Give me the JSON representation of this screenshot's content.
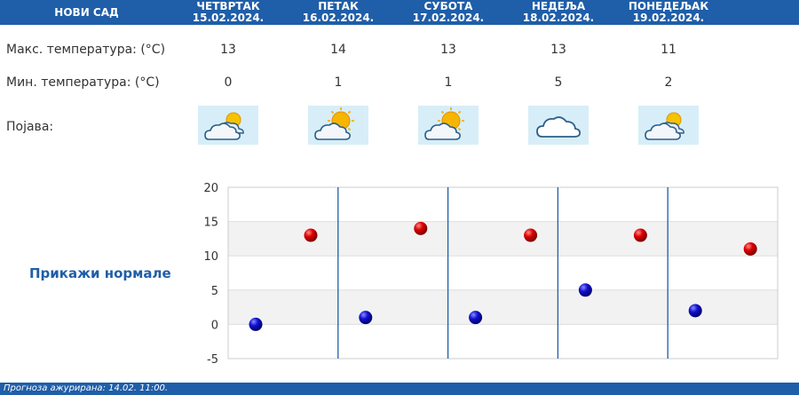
{
  "city": "НОВИ САД",
  "labels": {
    "max_temp": "Макс. температура: (°C)",
    "min_temp": "Мин. температура: (°C)",
    "phenomenon": "Појава:"
  },
  "days": [
    {
      "name": "ЧЕТВРТАК",
      "date": "15.02.2024.",
      "max": 13,
      "min": 0,
      "icon": "partly-cloudy-icon"
    },
    {
      "name": "ПЕТАК",
      "date": "16.02.2024.",
      "max": 14,
      "min": 1,
      "icon": "mostly-sunny-icon"
    },
    {
      "name": "СУБОТА",
      "date": "17.02.2024.",
      "max": 13,
      "min": 1,
      "icon": "mostly-sunny-icon"
    },
    {
      "name": "НЕДЕЉА",
      "date": "18.02.2024.",
      "max": 13,
      "min": 5,
      "icon": "cloudy-icon"
    },
    {
      "name": "ПОНЕДЕЉАК",
      "date": "19.02.2024.",
      "max": 11,
      "min": 2,
      "icon": "partly-cloudy-icon"
    }
  ],
  "normals_link": "Прикажи нормале",
  "chart_data": {
    "type": "scatter",
    "ylim": [
      -5,
      20
    ],
    "yticks": [
      20,
      15,
      10,
      5,
      0,
      -5
    ],
    "series": [
      {
        "values": [
          13,
          14,
          13,
          13,
          11
        ],
        "color": "#cc0000"
      },
      {
        "values": [
          0,
          1,
          1,
          5,
          2
        ],
        "color": "#0000cc"
      }
    ]
  },
  "footer": "Прогноза ажурирана:  14.02. 11:00."
}
